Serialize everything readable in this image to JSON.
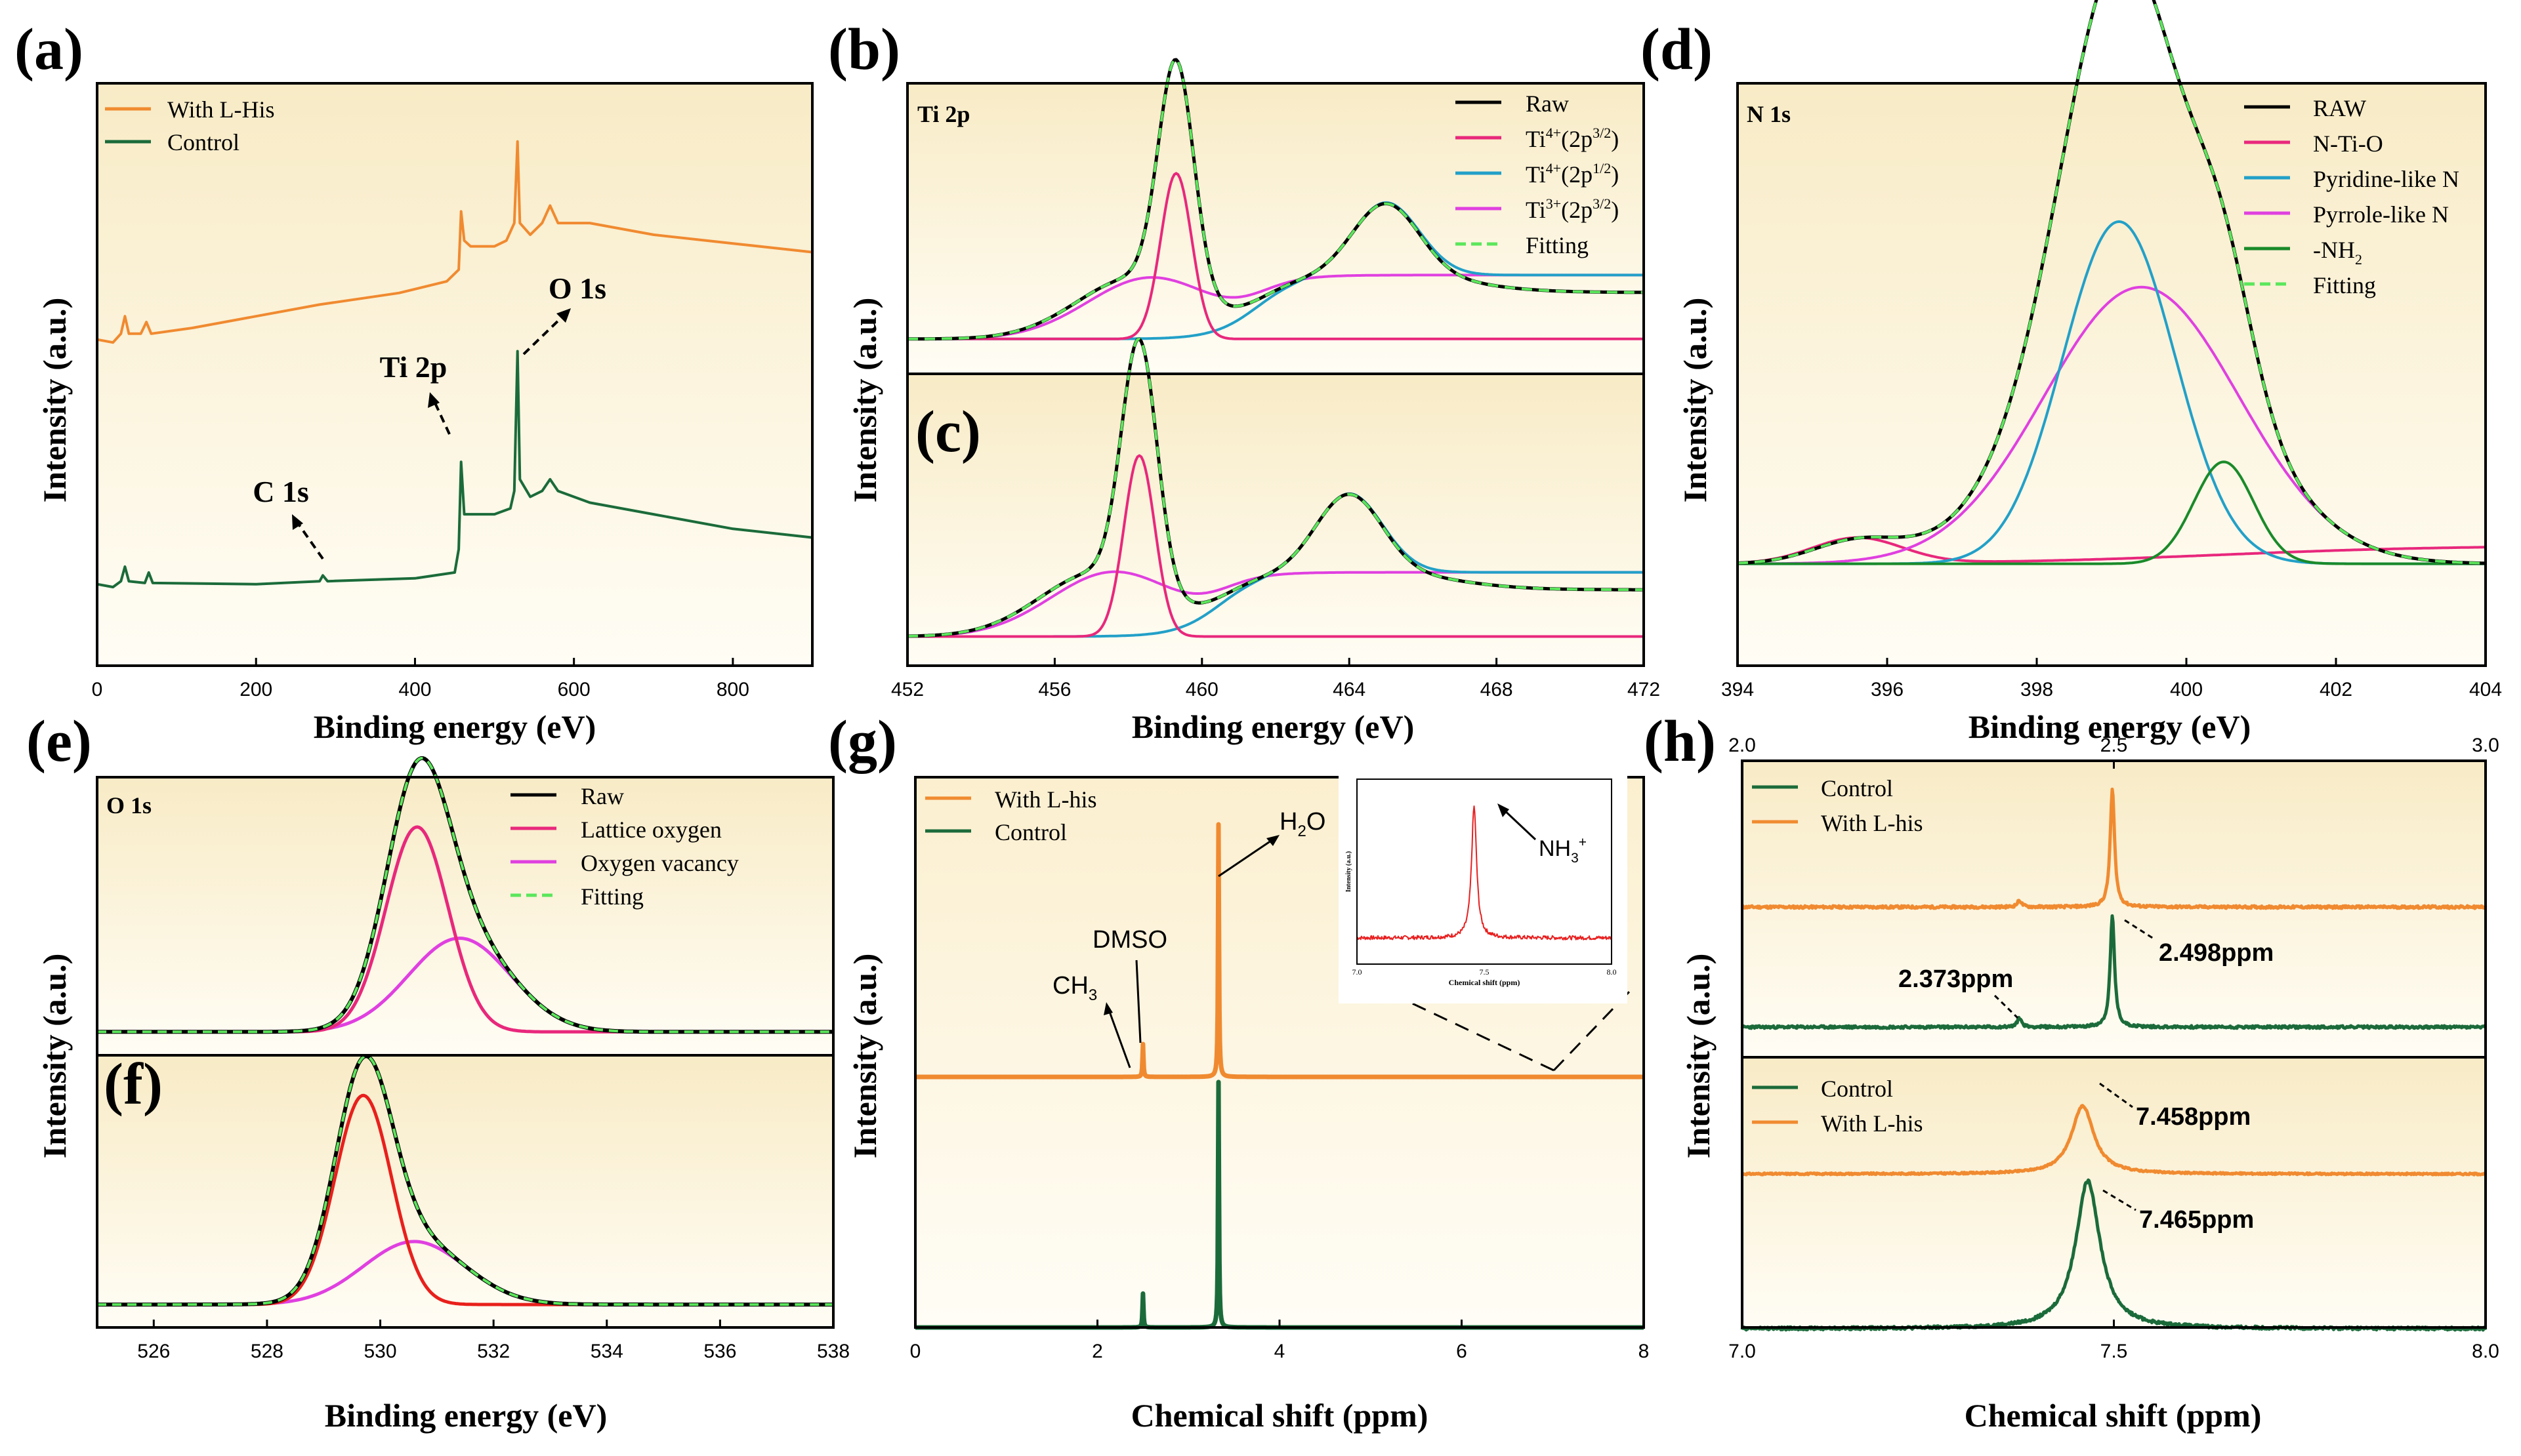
{
  "chart_data": [
    {
      "id": "a",
      "type": "line",
      "panel_label": "(a)",
      "xlabel": "Binding energy (eV)",
      "ylabel": "Intensity (a.u.)",
      "xlim": [
        0,
        900
      ],
      "ylim": [
        0,
        100
      ],
      "xticks": [
        "0",
        "200",
        "400",
        "600",
        "800"
      ],
      "xtick_values": [
        0,
        200,
        400,
        600,
        800
      ],
      "legend": [
        {
          "name": "With L-His",
          "color": "#f08a30"
        },
        {
          "name": "Control",
          "color": "#1b6b3a"
        }
      ],
      "annotations": [
        "O 1s",
        "Ti 2p",
        "C 1s"
      ],
      "series": [
        {
          "name": "With L-His",
          "color": "#f08a30",
          "points": [
            [
              0,
              56
            ],
            [
              20,
              55.5
            ],
            [
              30,
              57
            ],
            [
              35,
              60
            ],
            [
              40,
              57
            ],
            [
              55,
              57
            ],
            [
              62,
              59
            ],
            [
              68,
              57
            ],
            [
              120,
              58
            ],
            [
              200,
              60
            ],
            [
              280,
              62
            ],
            [
              380,
              64
            ],
            [
              440,
              66
            ],
            [
              455,
              68
            ],
            [
              458,
              78
            ],
            [
              462,
              73
            ],
            [
              470,
              72
            ],
            [
              500,
              72
            ],
            [
              515,
              73
            ],
            [
              525,
              76
            ],
            [
              529,
              90
            ],
            [
              532,
              76
            ],
            [
              545,
              74
            ],
            [
              560,
              76
            ],
            [
              570,
              79
            ],
            [
              580,
              76
            ],
            [
              620,
              76
            ],
            [
              700,
              74
            ],
            [
              800,
              72.5
            ],
            [
              900,
              71
            ]
          ]
        },
        {
          "name": "Control",
          "color": "#1b6b3a",
          "points": [
            [
              0,
              14
            ],
            [
              20,
              13.5
            ],
            [
              30,
              14.5
            ],
            [
              35,
              17
            ],
            [
              40,
              14.5
            ],
            [
              60,
              14.2
            ],
            [
              65,
              16
            ],
            [
              70,
              14.2
            ],
            [
              200,
              14
            ],
            [
              280,
              14.5
            ],
            [
              284,
              15.5
            ],
            [
              290,
              14.5
            ],
            [
              400,
              15
            ],
            [
              450,
              16
            ],
            [
              455,
              20
            ],
            [
              458,
              35
            ],
            [
              462,
              26
            ],
            [
              470,
              26
            ],
            [
              500,
              26
            ],
            [
              520,
              27
            ],
            [
              525,
              30
            ],
            [
              529,
              54
            ],
            [
              532,
              32
            ],
            [
              545,
              29
            ],
            [
              560,
              30
            ],
            [
              570,
              32
            ],
            [
              580,
              30
            ],
            [
              620,
              28
            ],
            [
              700,
              26
            ],
            [
              800,
              23.5
            ],
            [
              900,
              22
            ]
          ]
        }
      ]
    },
    {
      "id": "b",
      "type": "line",
      "panel_label": "(b)",
      "inner_label": "Ti 2p",
      "xlim": [
        452,
        472
      ],
      "ylim": [
        0,
        100
      ],
      "legend": [
        {
          "name": "Raw",
          "color": "#000000"
        },
        {
          "name": "Ti",
          "sup": "4+",
          "orbital": "(2p",
          "orbital_sup": "3/2",
          "close": ")",
          "color": "#e8287c"
        },
        {
          "name": "Ti",
          "sup": "4+",
          "orbital": "(2p",
          "orbital_sup": "1/2",
          "close": ")",
          "color": "#22a0c8"
        },
        {
          "name": "Ti",
          "sup": "3+",
          "orbital": "(2p",
          "orbital_sup": "3/2",
          "close": ")",
          "color": "#e040e0"
        },
        {
          "name": "Fitting",
          "color": "#5ce65c"
        }
      ],
      "components": {
        "raw": {
          "color": "#000000",
          "base": 12,
          "peaks": [
            [
              459.3,
              79,
              0.48
            ],
            [
              465.0,
              25,
              0.9
            ],
            [
              458.2,
              21,
              1.6
            ]
          ],
          "step": [
            461.5,
            22,
            0.6
          ],
          "tail": [
            467.5,
            -6,
            0.9
          ]
        },
        "ti4_3_2": {
          "color": "#e8287c",
          "base": 12,
          "peaks": [
            [
              459.3,
              57,
              0.42
            ]
          ],
          "rise": [
            458.2,
            21,
            1.6
          ]
        },
        "ti4_1_2": {
          "color": "#22a0c8",
          "base": 12,
          "peaks": [
            [
              465.0,
              25,
              0.9
            ]
          ],
          "step": [
            461.5,
            22,
            0.6
          ]
        },
        "ti3": {
          "color": "#e040e0",
          "base": 12,
          "peaks": [
            [
              458.6,
              21,
              1.7
            ]
          ],
          "step": [
            461.5,
            22,
            0.6
          ]
        }
      }
    },
    {
      "id": "c",
      "type": "line",
      "panel_label": "(c)",
      "xlabel": "Binding energy (eV)",
      "ylabel": "Intensity (a.u.)",
      "xlim": [
        452,
        472
      ],
      "xticks": [
        "452",
        "456",
        "460",
        "464",
        "468",
        "472"
      ],
      "xtick_values": [
        452,
        456,
        460,
        464,
        468,
        472
      ],
      "components": {
        "raw": {
          "color": "#000000",
          "base": 10,
          "peaks": [
            [
              458.3,
              84,
              0.48
            ],
            [
              464.0,
              27,
              0.9
            ],
            [
              457.2,
              22,
              1.6
            ]
          ],
          "step": [
            460.5,
            22,
            0.6
          ],
          "tail": [
            467.0,
            -6,
            0.9
          ]
        },
        "ti4_3_2": {
          "color": "#e8287c",
          "base": 10,
          "peaks": [
            [
              458.3,
              62,
              0.42
            ]
          ],
          "rise": [
            457.2,
            22,
            1.6
          ]
        },
        "ti4_1_2": {
          "color": "#22a0c8",
          "base": 10,
          "peaks": [
            [
              464.0,
              27,
              0.9
            ]
          ],
          "step": [
            460.5,
            22,
            0.6
          ]
        },
        "ti3": {
          "color": "#e040e0",
          "base": 10,
          "peaks": [
            [
              457.6,
              22,
              1.7
            ]
          ],
          "step": [
            460.5,
            22,
            0.6
          ]
        }
      }
    },
    {
      "id": "d",
      "type": "line",
      "panel_label": "(d)",
      "inner_label": "N 1s",
      "xlabel": "Binding energy (eV)",
      "ylabel": "Intensity (a.u.)",
      "xlim": [
        394,
        404
      ],
      "ylim": [
        0,
        100
      ],
      "xticks": [
        "394",
        "396",
        "398",
        "400",
        "402",
        "404"
      ],
      "xtick_values": [
        394,
        396,
        398,
        400,
        402,
        404
      ],
      "legend": [
        {
          "name": "RAW",
          "color": "#000000"
        },
        {
          "name": "N-Ti-O",
          "color": "#e8287c"
        },
        {
          "name": "Pyridine-like N",
          "color": "#22a0c8"
        },
        {
          "name": "Pyrrole-like N",
          "color": "#e040e0"
        },
        {
          "name": "-NH",
          "sub": "2",
          "color": "#1a8a2a"
        },
        {
          "name": "Fitting",
          "color": "#5ce65c"
        }
      ],
      "components": {
        "raw": {
          "color": "#000000",
          "base": 14,
          "peaks": [
            [
              399.1,
              47,
              0.75
            ],
            [
              399.4,
              38,
              1.3
            ],
            [
              400.5,
              14,
              0.4
            ],
            [
              395.6,
              3,
              0.6
            ]
          ]
        },
        "n_ti_o": {
          "color": "#e8287c",
          "base": 14,
          "peaks": [
            [
              395.6,
              3.5,
              0.6
            ]
          ],
          "step": [
            400.5,
            2.5,
            1.5
          ]
        },
        "pyridine": {
          "color": "#22a0c8",
          "base": 14,
          "peaks": [
            [
              399.1,
              47,
              0.75
            ]
          ]
        },
        "pyrrole": {
          "color": "#e040e0",
          "base": 14,
          "peaks": [
            [
              399.4,
              38,
              1.3
            ]
          ]
        },
        "nh2": {
          "color": "#1a8a2a",
          "base": 14,
          "peaks": [
            [
              400.5,
              14,
              0.4
            ]
          ]
        }
      }
    },
    {
      "id": "e",
      "type": "line",
      "panel_label": "(e)",
      "inner_label": "O 1s",
      "xlim": [
        525,
        538
      ],
      "legend": [
        {
          "name": "Raw",
          "color": "#000000"
        },
        {
          "name": "Lattice oxygen",
          "color": "#e8287c"
        },
        {
          "name": "Oxygen vacancy",
          "color": "#e040e0"
        },
        {
          "name": "Fitting",
          "color": "#5ce65c"
        }
      ],
      "components": {
        "raw": {
          "color": "#000000",
          "base": 8,
          "peaks": [
            [
              530.65,
              70,
              0.55
            ],
            [
              531.4,
              32,
              0.9
            ]
          ]
        },
        "lattice": {
          "color": "#e8287c",
          "base": 8,
          "peaks": [
            [
              530.65,
              70,
              0.55
            ]
          ]
        },
        "vacancy": {
          "color": "#e040e0",
          "base": 8,
          "peaks": [
            [
              531.4,
              32,
              0.9
            ]
          ]
        }
      }
    },
    {
      "id": "f",
      "type": "line",
      "panel_label": "(f)",
      "xlabel": "Binding energy (eV)",
      "ylabel": "Intensity (a.u.)",
      "xlim": [
        525,
        538
      ],
      "xticks": [
        "526",
        "528",
        "530",
        "532",
        "534",
        "536",
        "538"
      ],
      "xtick_values": [
        526,
        528,
        530,
        532,
        534,
        536,
        538
      ],
      "components": {
        "raw": {
          "color": "#000000",
          "base": 8,
          "peaks": [
            [
              529.7,
              73,
              0.5
            ],
            [
              530.6,
              22,
              0.9
            ]
          ]
        },
        "lattice": {
          "color": "#e8201c",
          "base": 8,
          "peaks": [
            [
              529.7,
              73,
              0.5
            ]
          ]
        },
        "vacancy": {
          "color": "#e040e0",
          "base": 8,
          "peaks": [
            [
              530.6,
              22,
              0.9
            ]
          ]
        }
      }
    },
    {
      "id": "g",
      "type": "line",
      "panel_label": "(g)",
      "xlabel": "Chemical shift (ppm)",
      "ylabel": "Intensity (a.u.)",
      "xlim": [
        0,
        8
      ],
      "xticks": [
        "0",
        "2",
        "4",
        "6",
        "8"
      ],
      "xtick_values": [
        0,
        2,
        4,
        6,
        8
      ],
      "legend": [
        {
          "name": "With L-his",
          "color": "#f08a30"
        },
        {
          "name": "Control",
          "color": "#1b6b3a"
        }
      ],
      "annotations": {
        "ch3": "CH",
        "ch3_sub": "3",
        "dmso": "DMSO",
        "h2o_h": "H",
        "h2o_sub": "2",
        "h2o_o": "O"
      },
      "series": [
        {
          "name": "With L-his",
          "color": "#f08a30",
          "peaks": [
            [
              2.5,
              0.1
            ],
            [
              3.33,
              0.77
            ]
          ]
        },
        {
          "name": "Control",
          "color": "#1b6b3a",
          "peaks": [
            [
              2.5,
              0.12
            ],
            [
              3.33,
              0.87
            ]
          ]
        }
      ],
      "inset": {
        "xlabel": "Chemical shift (ppm)",
        "ylabel": "Intensity (a.u.)",
        "xlim": [
          7.0,
          8.0
        ],
        "xticks": [
          "7.0",
          "7.5",
          "8.0"
        ],
        "xtick_values": [
          7.0,
          7.5,
          8.0
        ],
        "annotation": "NH",
        "annotation_sub": "3",
        "annotation_sup": "+",
        "peak": 7.46
      }
    },
    {
      "id": "h_top",
      "type": "line",
      "panel_label": "(h)",
      "xlim": [
        2.0,
        3.0
      ],
      "top_ticks": [
        "2.0",
        "2.5",
        "3.0"
      ],
      "top_tick_values": [
        2.0,
        2.5,
        3.0
      ],
      "legend": [
        {
          "name": "Control",
          "color": "#1b6b3a"
        },
        {
          "name": "With L-his",
          "color": "#f08a30"
        }
      ],
      "annotations": [
        "2.373ppm",
        "2.498ppm"
      ],
      "series": [
        {
          "name": "With L-his",
          "color": "#f08a30",
          "peaks": [
            [
              2.498,
              0.9
            ],
            [
              2.373,
              0.05
            ]
          ]
        },
        {
          "name": "Control",
          "color": "#1b6b3a",
          "peaks": [
            [
              2.498,
              0.85
            ],
            [
              2.373,
              0.07
            ]
          ]
        }
      ]
    },
    {
      "id": "h_bottom",
      "type": "line",
      "xlabel": "Chemical shift (ppm)",
      "ylabel": "Intensity (a.u.)",
      "xlim": [
        7.0,
        8.0
      ],
      "xticks": [
        "7.0",
        "7.5",
        "8.0"
      ],
      "xtick_values": [
        7.0,
        7.5,
        8.0
      ],
      "legend": [
        {
          "name": "Control",
          "color": "#1b6b3a"
        },
        {
          "name": "With L-his",
          "color": "#f08a30"
        }
      ],
      "annotations": [
        "7.458ppm",
        "7.465ppm"
      ],
      "series": [
        {
          "name": "With L-his",
          "color": "#f08a30",
          "peaks": [
            [
              7.458,
              0.8
            ]
          ]
        },
        {
          "name": "Control",
          "color": "#1b6b3a",
          "peaks": [
            [
              7.465,
              1.0
            ]
          ]
        }
      ]
    }
  ]
}
